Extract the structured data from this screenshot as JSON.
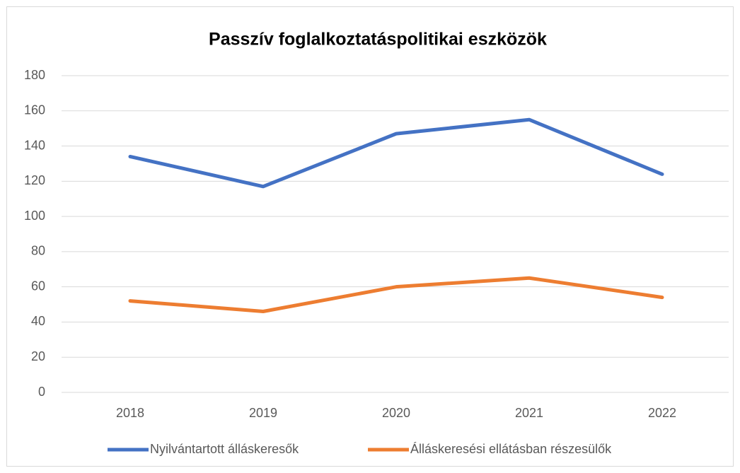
{
  "chart_data": {
    "type": "line",
    "title": "Passzív foglalkoztatáspolitikai eszközök",
    "categories": [
      "2018",
      "2019",
      "2020",
      "2021",
      "2022"
    ],
    "series": [
      {
        "name": "Nyilvántartott álláskeresők",
        "color": "#4472c4",
        "values": [
          134,
          117,
          147,
          155,
          124
        ]
      },
      {
        "name": "Álláskeresési ellátásban részesülők",
        "color": "#ed7d31",
        "values": [
          52,
          46,
          60,
          65,
          54
        ]
      }
    ],
    "ylim": [
      0,
      180
    ],
    "yticks": [
      0,
      20,
      40,
      60,
      80,
      100,
      120,
      140,
      160,
      180
    ],
    "grid": true,
    "legend": "bottom"
  }
}
